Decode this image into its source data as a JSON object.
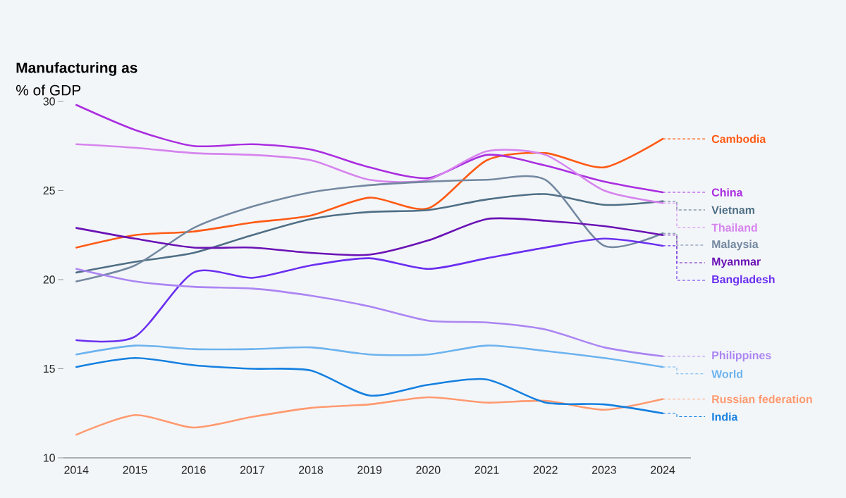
{
  "chart_data": {
    "type": "line",
    "title": "Manufacturing as",
    "subtitle": "% of GDP",
    "x": [
      2014,
      2015,
      2016,
      2017,
      2018,
      2019,
      2020,
      2021,
      2022,
      2023,
      2024
    ],
    "xlim": [
      2013.78,
      2024.48
    ],
    "ylim": [
      10,
      30
    ],
    "xticks": [
      2014,
      2015,
      2016,
      2017,
      2018,
      2019,
      2020,
      2021,
      2022,
      2023,
      2024
    ],
    "yticks": [
      10,
      15,
      20,
      25,
      30
    ],
    "legend": "right",
    "series": [
      {
        "name": "Cambodia",
        "color": "#ff5a14",
        "values": [
          21.8,
          22.5,
          22.7,
          23.2,
          23.6,
          24.6,
          24.0,
          26.7,
          27.1,
          26.3,
          27.9
        ]
      },
      {
        "name": "China",
        "color": "#aa2ee0",
        "values": [
          29.8,
          28.4,
          27.5,
          27.6,
          27.3,
          26.3,
          25.7,
          27.0,
          26.4,
          25.5,
          24.9
        ]
      },
      {
        "name": "Vietnam",
        "color": "#4f6f85",
        "values": [
          20.4,
          21.0,
          21.5,
          22.5,
          23.4,
          23.8,
          23.9,
          24.5,
          24.8,
          24.2,
          24.4
        ]
      },
      {
        "name": "Thailand",
        "color": "#d684ee",
        "values": [
          27.6,
          27.4,
          27.1,
          27.0,
          26.7,
          25.6,
          25.6,
          27.2,
          27.0,
          25.0,
          24.3
        ]
      },
      {
        "name": "Malaysia",
        "color": "#7388a0",
        "values": [
          19.9,
          20.8,
          22.9,
          24.1,
          24.9,
          25.3,
          25.5,
          25.6,
          25.6,
          21.9,
          22.6
        ]
      },
      {
        "name": "Myanmar",
        "color": "#6a12b5",
        "values": [
          22.9,
          22.3,
          21.8,
          21.8,
          21.5,
          21.4,
          22.2,
          23.4,
          23.3,
          23.0,
          22.5
        ]
      },
      {
        "name": "Bangladesh",
        "color": "#6a2ff0",
        "values": [
          16.6,
          16.8,
          20.4,
          20.1,
          20.8,
          21.2,
          20.6,
          21.2,
          21.8,
          22.3,
          21.9
        ]
      },
      {
        "name": "Philippines",
        "color": "#ab85f2",
        "values": [
          20.6,
          19.9,
          19.6,
          19.5,
          19.1,
          18.5,
          17.7,
          17.6,
          17.2,
          16.2,
          15.7
        ]
      },
      {
        "name": "World",
        "color": "#6db3ee",
        "values": [
          15.8,
          16.3,
          16.1,
          16.1,
          16.2,
          15.8,
          15.8,
          16.3,
          16.0,
          15.6,
          15.1
        ]
      },
      {
        "name": "Russian federation",
        "color": "#ff9a70",
        "values": [
          11.3,
          12.4,
          11.7,
          12.3,
          12.8,
          13.0,
          13.4,
          13.1,
          13.2,
          12.7,
          13.3
        ]
      },
      {
        "name": "India",
        "color": "#1580e0",
        "values": [
          15.1,
          15.6,
          15.2,
          15.0,
          14.9,
          13.5,
          14.1,
          14.4,
          13.1,
          13.0,
          12.5
        ]
      }
    ]
  }
}
